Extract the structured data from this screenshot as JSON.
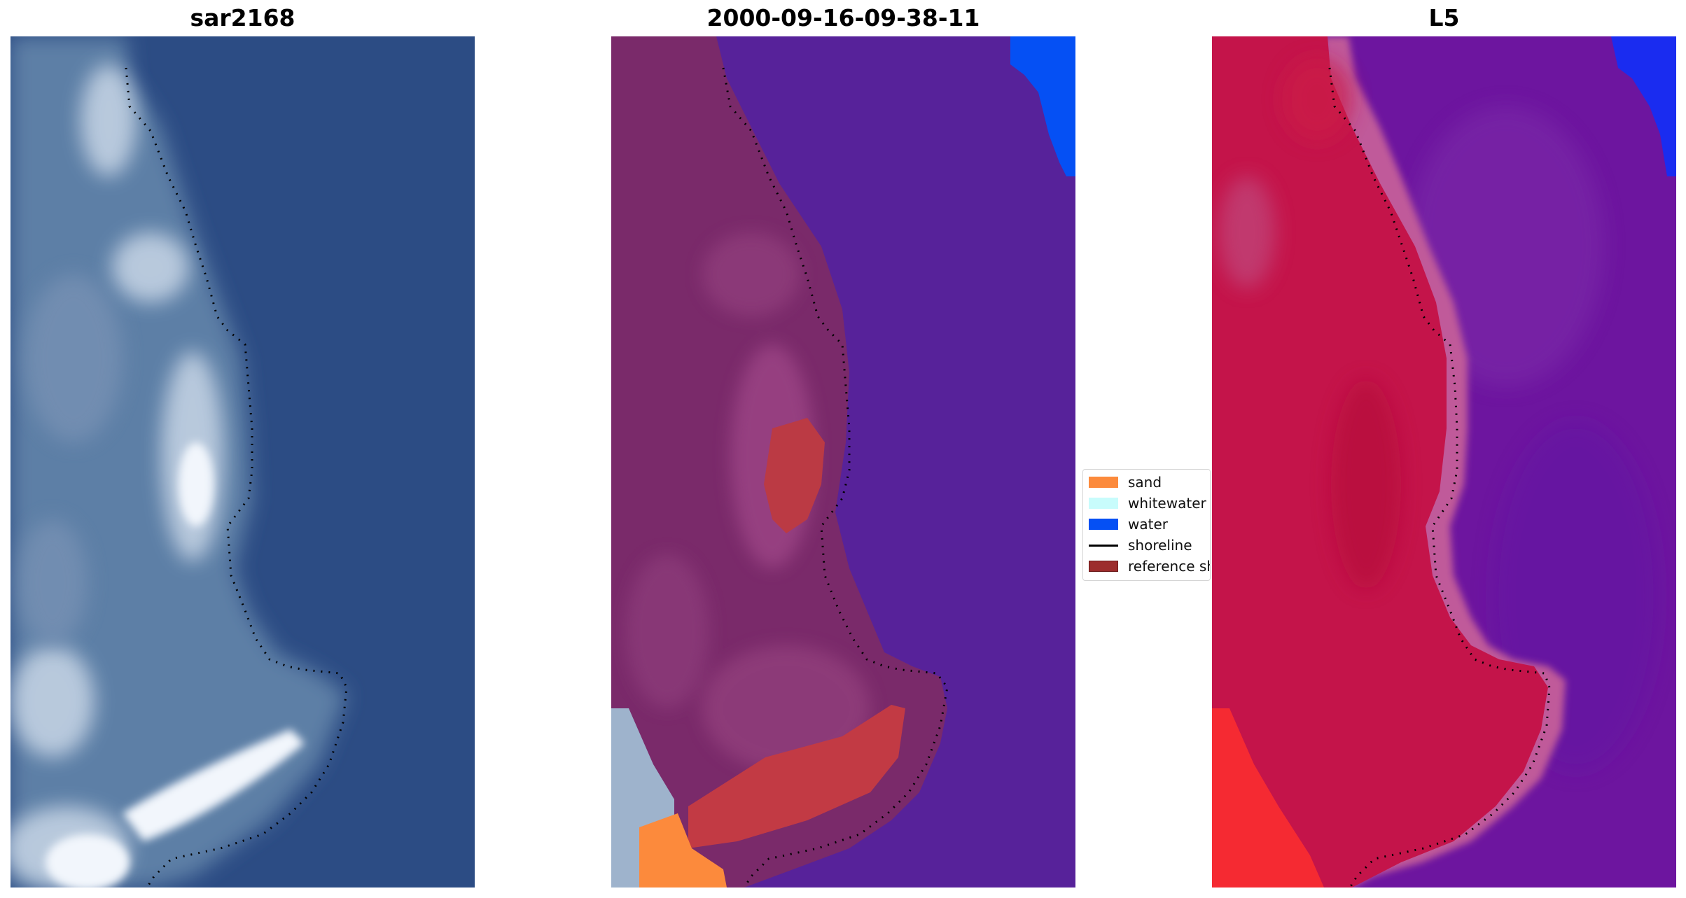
{
  "panels": [
    {
      "title": "sar2168"
    },
    {
      "title": "2000-09-16-09-38-11"
    },
    {
      "title": "L5"
    }
  ],
  "legend": {
    "items": [
      {
        "label": "sand",
        "color": "#fc8a3c"
      },
      {
        "label": "whitewater",
        "color": "#c8fcfc"
      },
      {
        "label": "water",
        "color": "#0550f4"
      },
      {
        "label": "shoreline",
        "color": "#000000"
      },
      {
        "label": "reference shoreline",
        "color": "#9c2c2c"
      }
    ]
  },
  "colors": {
    "rgb_water": "#2c4c84",
    "class_water_overlay": "#57229a",
    "land_overlay": "#7a2a6a",
    "index_land": "#c0123a",
    "index_water": "#6d159f",
    "shoreline_dots": "#000000"
  }
}
